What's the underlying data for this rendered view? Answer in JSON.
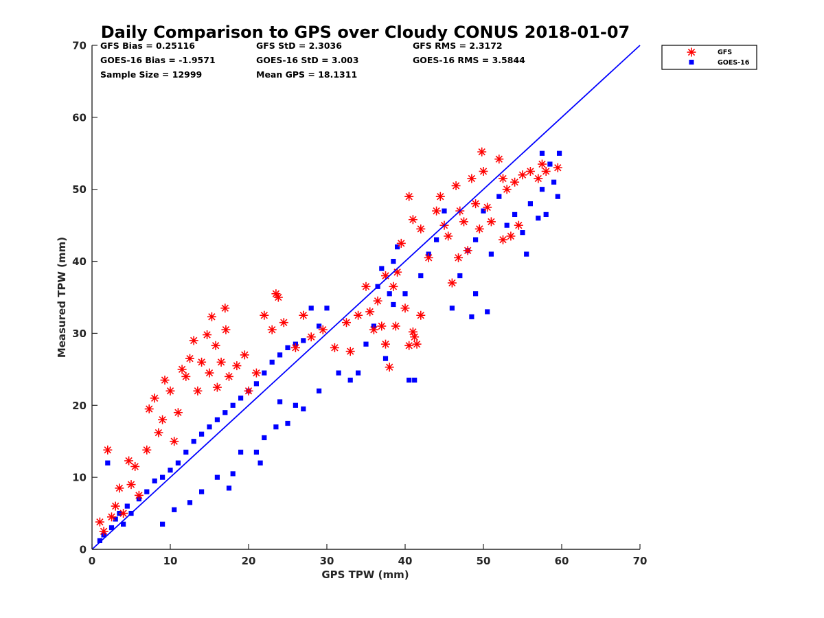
{
  "chart_data": {
    "type": "scatter",
    "title": "Daily Comparison to GPS over Cloudy CONUS 2018-01-07",
    "xlabel": "GPS TPW (mm)",
    "ylabel": "Measured TPW (mm)",
    "xlim": [
      0,
      70
    ],
    "ylim": [
      0,
      70
    ],
    "xticks": [
      0,
      10,
      20,
      30,
      40,
      50,
      60,
      70
    ],
    "yticks": [
      0,
      10,
      20,
      30,
      40,
      50,
      60,
      70
    ],
    "grid": false,
    "legend_position": "outside-top-right",
    "reference_line": {
      "x": [
        0,
        70
      ],
      "y": [
        0,
        70
      ],
      "color": "#0000ff"
    },
    "stats": [
      {
        "label": "GFS Bias",
        "value": "0.25116"
      },
      {
        "label": "GFS StD",
        "value": "2.3036"
      },
      {
        "label": "GFS RMS",
        "value": "2.3172"
      },
      {
        "label": "GOES-16 Bias",
        "value": "-1.9571"
      },
      {
        "label": "GOES-16 StD",
        "value": "3.003"
      },
      {
        "label": "GOES-16 RMS",
        "value": "3.5844"
      },
      {
        "label": "Sample Size",
        "value": "12999"
      },
      {
        "label": "Mean GPS",
        "value": "18.1311"
      }
    ],
    "series": [
      {
        "name": "GFS",
        "marker": "asterisk",
        "color": "#ff0000",
        "points": [
          [
            1.0,
            3.8
          ],
          [
            1.5,
            2.5
          ],
          [
            2.0,
            13.8
          ],
          [
            2.5,
            4.5
          ],
          [
            3.0,
            6.0
          ],
          [
            3.5,
            8.5
          ],
          [
            4.0,
            5.0
          ],
          [
            4.7,
            12.3
          ],
          [
            5.0,
            9.0
          ],
          [
            5.5,
            11.5
          ],
          [
            6.0,
            7.5
          ],
          [
            7.0,
            13.8
          ],
          [
            7.3,
            19.5
          ],
          [
            8.0,
            21.0
          ],
          [
            8.5,
            16.2
          ],
          [
            9.0,
            18.0
          ],
          [
            9.3,
            23.5
          ],
          [
            10.0,
            22.0
          ],
          [
            10.5,
            15.0
          ],
          [
            11.0,
            19.0
          ],
          [
            11.5,
            25.0
          ],
          [
            12.0,
            24.0
          ],
          [
            12.5,
            26.5
          ],
          [
            13.0,
            29.0
          ],
          [
            13.5,
            22.0
          ],
          [
            14.0,
            26.0
          ],
          [
            14.7,
            29.8
          ],
          [
            15.0,
            24.5
          ],
          [
            15.3,
            32.3
          ],
          [
            15.8,
            28.3
          ],
          [
            16.0,
            22.5
          ],
          [
            16.5,
            26.0
          ],
          [
            17.0,
            33.5
          ],
          [
            17.1,
            30.5
          ],
          [
            17.5,
            24.0
          ],
          [
            18.5,
            25.5
          ],
          [
            19.5,
            27.0
          ],
          [
            20.0,
            22.0
          ],
          [
            21.0,
            24.5
          ],
          [
            22.0,
            32.5
          ],
          [
            23.0,
            30.5
          ],
          [
            23.5,
            35.5
          ],
          [
            23.8,
            35.0
          ],
          [
            24.5,
            31.5
          ],
          [
            26.0,
            28.0
          ],
          [
            27.0,
            32.5
          ],
          [
            28.0,
            29.5
          ],
          [
            29.5,
            30.5
          ],
          [
            31.0,
            28.0
          ],
          [
            32.5,
            31.5
          ],
          [
            33.0,
            27.5
          ],
          [
            34.0,
            32.5
          ],
          [
            35.0,
            36.5
          ],
          [
            35.5,
            33.0
          ],
          [
            36.5,
            34.5
          ],
          [
            37.0,
            31.0
          ],
          [
            37.5,
            28.5
          ],
          [
            38.0,
            25.3
          ],
          [
            38.5,
            36.5
          ],
          [
            39.0,
            38.5
          ],
          [
            39.5,
            42.5
          ],
          [
            40.0,
            33.5
          ],
          [
            40.5,
            28.3
          ],
          [
            41.0,
            30.2
          ],
          [
            41.0,
            45.8
          ],
          [
            41.5,
            28.5
          ],
          [
            42.0,
            44.5
          ],
          [
            43.0,
            40.5
          ],
          [
            44.0,
            47.0
          ],
          [
            44.5,
            49.0
          ],
          [
            45.0,
            45.0
          ],
          [
            45.5,
            43.5
          ],
          [
            46.0,
            37.0
          ],
          [
            46.5,
            50.5
          ],
          [
            47.0,
            47.0
          ],
          [
            47.5,
            45.5
          ],
          [
            48.0,
            41.5
          ],
          [
            48.5,
            51.5
          ],
          [
            49.0,
            48.0
          ],
          [
            49.5,
            44.5
          ],
          [
            49.8,
            55.2
          ],
          [
            50.0,
            52.5
          ],
          [
            50.5,
            47.5
          ],
          [
            51.0,
            45.5
          ],
          [
            52.0,
            54.2
          ],
          [
            52.5,
            51.5
          ],
          [
            53.0,
            50.0
          ],
          [
            53.5,
            43.5
          ],
          [
            54.0,
            51.0
          ],
          [
            54.5,
            45.0
          ],
          [
            55.0,
            52.0
          ],
          [
            56.0,
            52.5
          ],
          [
            57.0,
            51.5
          ],
          [
            57.5,
            53.5
          ],
          [
            58.0,
            52.5
          ],
          [
            59.5,
            53.0
          ],
          [
            40.5,
            49.0
          ],
          [
            42.0,
            32.5
          ],
          [
            38.8,
            31.0
          ],
          [
            37.5,
            38.0
          ],
          [
            36.0,
            30.5
          ],
          [
            41.2,
            29.5
          ],
          [
            46.8,
            40.5
          ],
          [
            52.5,
            43.0
          ]
        ]
      },
      {
        "name": "GOES-16",
        "marker": "square",
        "color": "#0000ff",
        "points": [
          [
            1.0,
            1.2
          ],
          [
            1.5,
            2.0
          ],
          [
            2.0,
            12.0
          ],
          [
            2.5,
            3.0
          ],
          [
            3.0,
            4.2
          ],
          [
            3.5,
            5.0
          ],
          [
            4.0,
            3.5
          ],
          [
            4.5,
            6.0
          ],
          [
            5.0,
            5.0
          ],
          [
            6.0,
            7.0
          ],
          [
            7.0,
            8.0
          ],
          [
            8.0,
            9.5
          ],
          [
            9.0,
            10.0
          ],
          [
            10.0,
            11.0
          ],
          [
            11.0,
            12.0
          ],
          [
            12.0,
            13.5
          ],
          [
            13.0,
            15.0
          ],
          [
            14.0,
            16.0
          ],
          [
            15.0,
            17.0
          ],
          [
            16.0,
            18.0
          ],
          [
            17.0,
            19.0
          ],
          [
            18.0,
            20.0
          ],
          [
            19.0,
            21.0
          ],
          [
            20.0,
            22.0
          ],
          [
            21.0,
            23.0
          ],
          [
            22.0,
            24.5
          ],
          [
            23.0,
            26.0
          ],
          [
            24.0,
            27.0
          ],
          [
            25.0,
            28.0
          ],
          [
            26.0,
            28.5
          ],
          [
            27.0,
            29.0
          ],
          [
            28.0,
            33.5
          ],
          [
            29.0,
            31.0
          ],
          [
            30.0,
            33.5
          ],
          [
            33.0,
            23.5
          ],
          [
            34.0,
            24.5
          ],
          [
            35.0,
            28.5
          ],
          [
            36.0,
            31.0
          ],
          [
            36.5,
            36.5
          ],
          [
            37.0,
            39.0
          ],
          [
            37.5,
            26.5
          ],
          [
            38.0,
            35.5
          ],
          [
            38.5,
            40.0
          ],
          [
            39.0,
            42.0
          ],
          [
            40.0,
            35.5
          ],
          [
            40.5,
            23.5
          ],
          [
            41.2,
            23.5
          ],
          [
            42.0,
            38.0
          ],
          [
            43.0,
            41.0
          ],
          [
            44.0,
            43.0
          ],
          [
            45.0,
            47.0
          ],
          [
            46.0,
            33.5
          ],
          [
            47.0,
            38.0
          ],
          [
            48.0,
            41.5
          ],
          [
            48.5,
            32.3
          ],
          [
            49.0,
            43.0
          ],
          [
            50.0,
            47.0
          ],
          [
            50.5,
            33.0
          ],
          [
            51.0,
            41.0
          ],
          [
            52.0,
            49.0
          ],
          [
            53.0,
            45.0
          ],
          [
            54.0,
            46.5
          ],
          [
            55.0,
            44.0
          ],
          [
            55.5,
            41.0
          ],
          [
            56.0,
            48.0
          ],
          [
            57.0,
            46.0
          ],
          [
            57.5,
            50.0
          ],
          [
            58.0,
            46.5
          ],
          [
            58.5,
            53.5
          ],
          [
            59.0,
            51.0
          ],
          [
            59.5,
            49.0
          ],
          [
            59.7,
            55.0
          ],
          [
            57.5,
            55.0
          ],
          [
            49.0,
            35.5
          ],
          [
            38.5,
            34.0
          ],
          [
            31.5,
            24.5
          ],
          [
            21.0,
            13.5
          ],
          [
            21.5,
            12.0
          ],
          [
            18.0,
            10.5
          ],
          [
            22.0,
            15.5
          ],
          [
            25.0,
            17.5
          ],
          [
            27.0,
            19.5
          ],
          [
            23.5,
            17.0
          ],
          [
            17.5,
            8.5
          ],
          [
            12.5,
            6.5
          ],
          [
            10.5,
            5.5
          ],
          [
            9.0,
            3.5
          ],
          [
            14.0,
            8.0
          ],
          [
            16.0,
            10.0
          ],
          [
            19.0,
            13.5
          ],
          [
            29.0,
            22.0
          ],
          [
            26.0,
            20.0
          ],
          [
            24.0,
            20.5
          ]
        ]
      }
    ]
  }
}
